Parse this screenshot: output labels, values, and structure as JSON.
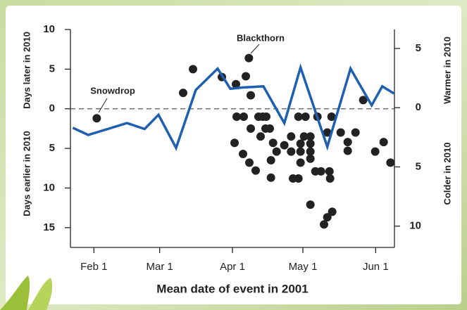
{
  "chart_data": {
    "type": "scatter",
    "xlabel": "Mean date of event in 2001",
    "ylabel_top": "Days later in 2010",
    "ylabel_bottom": "Days earlier in 2010",
    "y2label_top": "Warmer in 2010",
    "y2label_bottom": "Colder in 2010",
    "annotations": [
      "Snowdrop",
      "Blackthorn"
    ],
    "xlim": [
      22,
      160
    ],
    "xticks": [
      {
        "value": 32,
        "label": "Feb 1"
      },
      {
        "value": 60,
        "label": "Mar 1"
      },
      {
        "value": 91,
        "label": "Apr 1"
      },
      {
        "value": 121,
        "label": "May 1"
      },
      {
        "value": 152,
        "label": "Jun 1"
      }
    ],
    "ylim": [
      -17.5,
      10
    ],
    "yticks": [
      10,
      5,
      0,
      {
        "value": -5,
        "label": "5"
      },
      {
        "value": -10,
        "label": "10"
      },
      {
        "value": -15,
        "label": "15"
      }
    ],
    "y2lim": [
      -11.8,
      6.6
    ],
    "y2ticks": [
      5,
      0,
      {
        "value": -5,
        "label": "5"
      },
      {
        "value": -10,
        "label": "10"
      }
    ],
    "zero_line": true,
    "series": [
      {
        "type": "scatter",
        "color": "#222222",
        "x": [
          33.2,
          70,
          74.2,
          86.5,
          92.5,
          96.7,
          98,
          98.8,
          92.8,
          95.8,
          91.9,
          95.5,
          98.2,
          100.9,
          98.8,
          102.1,
          103.9,
          105.4,
          103,
          105.1,
          106.9,
          108.3,
          109.8,
          107.4,
          107.4,
          113.1,
          116,
          116,
          116.8,
          119.1,
          119.1,
          122.1,
          120,
          120,
          120,
          121.5,
          124.2,
          124.2,
          124.2,
          124.2,
          127.2,
          126.3,
          128.7,
          124.2,
          130,
          131.4,
          133.5,
          131.4,
          133.2,
          132.3,
          132.6,
          137.1,
          140.1,
          140.1,
          143.4,
          146.7,
          151.8,
          155.4,
          158.3
        ],
        "values": [
          -1.2,
          2.0,
          5.0,
          4.0,
          3.1,
          4.1,
          6.4,
          1.7,
          -1.0,
          -1.0,
          -4.3,
          -5.7,
          -6.8,
          -7.8,
          -2.5,
          -1.0,
          -1.0,
          -1.0,
          -3.5,
          -2.5,
          -2.5,
          -4.3,
          -5.4,
          -6.5,
          -8.7,
          -4.6,
          -3.5,
          -5.4,
          -8.8,
          -8.8,
          -1.0,
          -1.0,
          -4.4,
          -5.4,
          -6.8,
          -3.5,
          -3.5,
          -4.4,
          -5.4,
          -6.3,
          -1.0,
          -7.9,
          -7.9,
          -12.1,
          -14.6,
          -13.7,
          -13.0,
          -3.0,
          -1.0,
          -7.9,
          -8.8,
          -3.0,
          -4.2,
          -5.3,
          -3.0,
          1.1,
          -5.4,
          -4.2,
          -6.8
        ]
      },
      {
        "type": "line",
        "axis": "y2",
        "color": "#1f5fb0",
        "x": [
          23.0,
          29.6,
          46.1,
          53.6,
          59.5,
          67.0,
          75.4,
          84.7,
          90.1,
          95.2,
          104.2,
          113.1,
          120.0,
          131.4,
          141.3,
          150.3,
          154.8,
          159.8
        ],
        "values": [
          -1.7,
          -2.3,
          -1.3,
          -1.8,
          -0.6,
          -3.4,
          1.5,
          3.3,
          1.6,
          1.7,
          1.8,
          -1.3,
          3.4,
          -3.3,
          3.3,
          0.2,
          1.8,
          1.2
        ]
      }
    ]
  }
}
